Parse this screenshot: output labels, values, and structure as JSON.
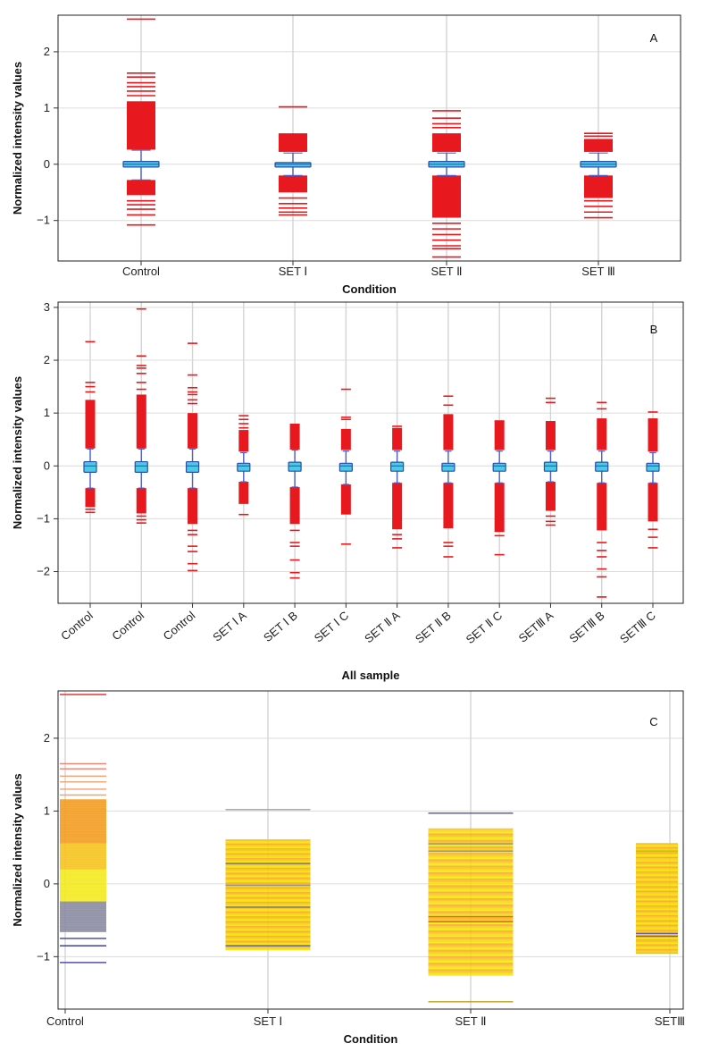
{
  "chart_data": [
    {
      "type": "box",
      "panel_label": "A",
      "xlabel": "Condition",
      "ylabel": "Normalized intensity values",
      "ylim": [
        -1.72,
        2.65
      ],
      "yticks": [
        -1,
        0,
        1,
        2
      ],
      "grid": true,
      "categories": [
        {
          "label": "Control",
          "q1": -0.05,
          "median": 0.0,
          "q3": 0.05,
          "whisker_low": -0.28,
          "whisker_high": 0.25,
          "outlier_band_high": [
            0.26,
            1.12
          ],
          "outlier_band_low": [
            -0.55,
            -0.28
          ],
          "outliers": [
            2.58,
            1.62,
            1.55,
            1.45,
            1.38,
            1.3,
            1.22,
            -0.65,
            -0.72,
            -0.8,
            -0.9,
            -1.08
          ]
        },
        {
          "label": "SET Ⅰ",
          "q1": -0.05,
          "median": 0.0,
          "q3": 0.03,
          "whisker_low": -0.2,
          "whisker_high": 0.2,
          "outlier_band_high": [
            0.22,
            0.55
          ],
          "outlier_band_low": [
            -0.5,
            -0.2
          ],
          "outliers": [
            1.02,
            -0.6,
            -0.7,
            -0.78,
            -0.85,
            -0.9
          ]
        },
        {
          "label": "SET Ⅱ",
          "q1": -0.05,
          "median": 0.0,
          "q3": 0.05,
          "whisker_low": -0.2,
          "whisker_high": 0.2,
          "outlier_band_high": [
            0.22,
            0.55
          ],
          "outlier_band_low": [
            -0.95,
            -0.2
          ],
          "outliers": [
            0.95,
            0.82,
            0.72,
            0.65,
            -1.05,
            -1.15,
            -1.25,
            -1.35,
            -1.45,
            -1.5,
            -1.65
          ]
        },
        {
          "label": "SET Ⅲ",
          "q1": -0.05,
          "median": 0.0,
          "q3": 0.05,
          "whisker_low": -0.2,
          "whisker_high": 0.2,
          "outlier_band_high": [
            0.22,
            0.45
          ],
          "outlier_band_low": [
            -0.6,
            -0.2
          ],
          "outliers": [
            0.55,
            0.5,
            -0.65,
            -0.75,
            -0.85,
            -0.95
          ]
        }
      ]
    },
    {
      "type": "box",
      "panel_label": "B",
      "xlabel": "All sample",
      "ylabel": "Normalized intensity values",
      "ylim": [
        -2.6,
        3.1
      ],
      "yticks": [
        -2,
        -1,
        0,
        1,
        2,
        3
      ],
      "grid": true,
      "categories": [
        {
          "label": "Control",
          "q1": -0.12,
          "median": 0.0,
          "q3": 0.08,
          "whisker_low": -0.42,
          "whisker_high": 0.32,
          "outlier_band_high": [
            0.33,
            1.25
          ],
          "outlier_band_low": [
            -0.78,
            -0.42
          ],
          "outliers": [
            2.35,
            1.58,
            1.5,
            1.4,
            -0.82,
            -0.88
          ]
        },
        {
          "label": "Control",
          "q1": -0.12,
          "median": 0.0,
          "q3": 0.08,
          "whisker_low": -0.42,
          "whisker_high": 0.32,
          "outlier_band_high": [
            0.33,
            1.35
          ],
          "outlier_band_low": [
            -0.9,
            -0.42
          ],
          "outliers": [
            2.97,
            2.08,
            1.9,
            1.85,
            1.75,
            1.58,
            1.45,
            -0.95,
            -1.02,
            -1.08
          ]
        },
        {
          "label": "Control",
          "q1": -0.12,
          "median": 0.0,
          "q3": 0.08,
          "whisker_low": -0.42,
          "whisker_high": 0.32,
          "outlier_band_high": [
            0.33,
            1.0
          ],
          "outlier_band_low": [
            -1.1,
            -0.42
          ],
          "outliers": [
            2.32,
            1.72,
            1.48,
            1.4,
            1.35,
            1.25,
            1.18,
            -1.22,
            -1.3,
            -1.52,
            -1.62,
            -1.85,
            -1.98
          ]
        },
        {
          "label": "SET Ⅰ A",
          "q1": -0.1,
          "median": 0.0,
          "q3": 0.05,
          "whisker_low": -0.3,
          "whisker_high": 0.25,
          "outlier_band_high": [
            0.27,
            0.68
          ],
          "outlier_band_low": [
            -0.72,
            -0.3
          ],
          "outliers": [
            0.95,
            0.88,
            0.8,
            0.72,
            -0.92
          ]
        },
        {
          "label": "SET Ⅰ B",
          "q1": -0.1,
          "median": 0.0,
          "q3": 0.07,
          "whisker_low": -0.4,
          "whisker_high": 0.3,
          "outlier_band_high": [
            0.31,
            0.8
          ],
          "outlier_band_low": [
            -1.1,
            -0.4
          ],
          "outliers": [
            -1.22,
            -1.45,
            -1.52,
            -1.78,
            -2.02,
            -2.12
          ]
        },
        {
          "label": "SET Ⅰ C",
          "q1": -0.1,
          "median": 0.0,
          "q3": 0.05,
          "whisker_low": -0.35,
          "whisker_high": 0.28,
          "outlier_band_high": [
            0.3,
            0.7
          ],
          "outlier_band_low": [
            -0.92,
            -0.35
          ],
          "outliers": [
            1.45,
            0.92,
            0.88,
            -1.48
          ]
        },
        {
          "label": "SET Ⅱ A",
          "q1": -0.1,
          "median": 0.0,
          "q3": 0.07,
          "whisker_low": -0.32,
          "whisker_high": 0.28,
          "outlier_band_high": [
            0.3,
            0.72
          ],
          "outlier_band_low": [
            -1.2,
            -0.32
          ],
          "outliers": [
            0.75,
            -1.3,
            -1.38,
            -1.55
          ]
        },
        {
          "label": "SET Ⅱ B",
          "q1": -0.1,
          "median": 0.0,
          "q3": 0.05,
          "whisker_low": -0.32,
          "whisker_high": 0.28,
          "outlier_band_high": [
            0.3,
            0.98
          ],
          "outlier_band_low": [
            -1.18,
            -0.32
          ],
          "outliers": [
            1.32,
            1.15,
            -1.45,
            -1.52,
            -1.72
          ]
        },
        {
          "label": "SET Ⅱ C",
          "q1": -0.1,
          "median": 0.0,
          "q3": 0.05,
          "whisker_low": -0.32,
          "whisker_high": 0.28,
          "outlier_band_high": [
            0.3,
            0.85
          ],
          "outlier_band_low": [
            -1.25,
            -0.32
          ],
          "outliers": [
            0.85,
            -1.32,
            -1.68
          ]
        },
        {
          "label": "SETⅢ A",
          "q1": -0.1,
          "median": 0.0,
          "q3": 0.07,
          "whisker_low": -0.3,
          "whisker_high": 0.28,
          "outlier_band_high": [
            0.3,
            0.85
          ],
          "outlier_band_low": [
            -0.85,
            -0.3
          ],
          "outliers": [
            1.28,
            1.2,
            -0.95,
            -1.05,
            -1.12
          ]
        },
        {
          "label": "SETⅢ B",
          "q1": -0.1,
          "median": 0.0,
          "q3": 0.07,
          "whisker_low": -0.32,
          "whisker_high": 0.28,
          "outlier_band_high": [
            0.3,
            0.9
          ],
          "outlier_band_low": [
            -1.22,
            -0.32
          ],
          "outliers": [
            1.2,
            1.08,
            -1.45,
            -1.6,
            -1.72,
            -1.95,
            -2.1,
            -2.48
          ]
        },
        {
          "label": "SETⅢ C",
          "q1": -0.1,
          "median": 0.0,
          "q3": 0.05,
          "whisker_low": -0.32,
          "whisker_high": 0.25,
          "outlier_band_high": [
            0.27,
            0.9
          ],
          "outlier_band_low": [
            -1.05,
            -0.32
          ],
          "outliers": [
            1.02,
            -1.2,
            -1.35,
            -1.55
          ]
        }
      ]
    },
    {
      "type": "strip",
      "panel_label": "C",
      "xlabel": "Condition",
      "ylabel": "Normalized intensity values",
      "ylim": [
        -1.72,
        2.65
      ],
      "yticks": [
        -1,
        0,
        1,
        2
      ],
      "grid": true,
      "categories": [
        {
          "label": "Control",
          "dense_range": [
            -0.65,
            1.15
          ],
          "lines": [
            {
              "y": 2.6,
              "color": "#e82020"
            },
            {
              "y": 1.65,
              "color": "#f08070"
            },
            {
              "y": 1.58,
              "color": "#f08070"
            },
            {
              "y": 1.48,
              "color": "#f4a070"
            },
            {
              "y": 1.4,
              "color": "#f4a070"
            },
            {
              "y": 1.3,
              "color": "#f4a070"
            },
            {
              "y": 1.22,
              "color": "#f4a070"
            },
            {
              "y": -0.75,
              "color": "#4040a0"
            },
            {
              "y": -0.85,
              "color": "#4040a0"
            },
            {
              "y": -1.08,
              "color": "#5050a8"
            }
          ]
        },
        {
          "label": "SET Ⅰ",
          "dense_range": [
            -0.9,
            0.6
          ],
          "lines": [
            {
              "y": 1.02,
              "color": "#a0a0a0"
            },
            {
              "y": 0.28,
              "color": "#707080"
            },
            {
              "y": -0.02,
              "color": "#909090"
            },
            {
              "y": -0.32,
              "color": "#707080"
            },
            {
              "y": -0.85,
              "color": "#6060b0"
            }
          ]
        },
        {
          "label": "SET Ⅱ",
          "dense_range": [
            -1.25,
            0.75
          ],
          "lines": [
            {
              "y": 0.97,
              "color": "#5050a0"
            },
            {
              "y": 0.55,
              "color": "#909070"
            },
            {
              "y": 0.45,
              "color": "#909070"
            },
            {
              "y": -0.45,
              "color": "#e06020"
            },
            {
              "y": -0.52,
              "color": "#e06020"
            },
            {
              "y": -1.62,
              "color": "#c0a020"
            }
          ]
        },
        {
          "label": "SETⅢ",
          "dense_range": [
            -0.95,
            0.55
          ],
          "lines": [
            {
              "y": 0.45,
              "color": "#c0c000"
            },
            {
              "y": -0.68,
              "color": "#6060b0"
            },
            {
              "y": -0.72,
              "color": "#6060b0"
            },
            {
              "y": -0.95,
              "color": "#e0c040"
            }
          ]
        }
      ]
    }
  ]
}
